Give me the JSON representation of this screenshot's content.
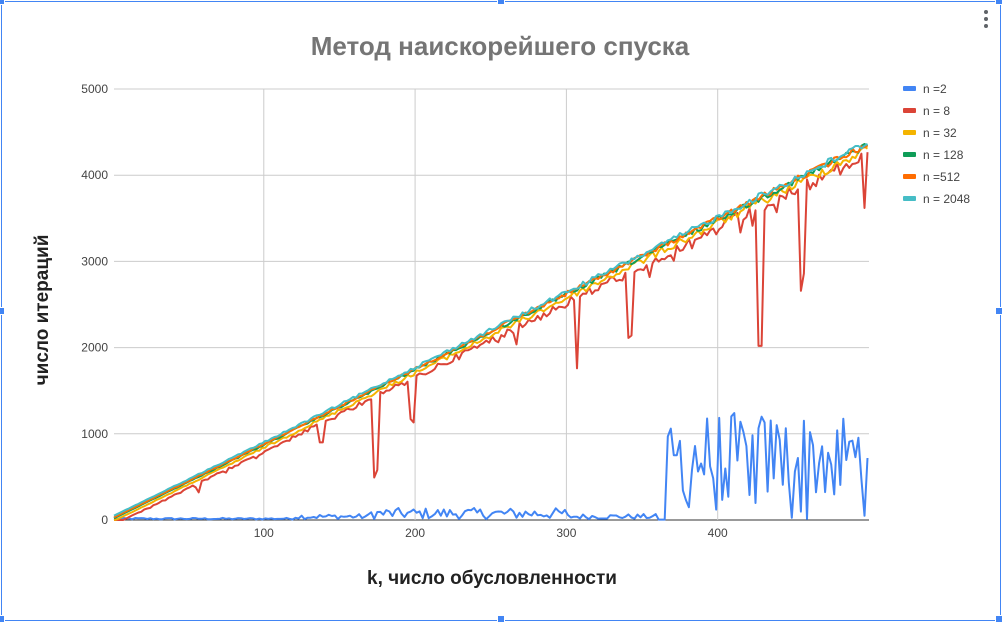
{
  "chart_data": {
    "type": "line",
    "title": "Метод наискорейшего спуска",
    "xlabel": "k, число обусловленности",
    "ylabel": "число итераций",
    "xlim": [
      1,
      500
    ],
    "ylim": [
      0,
      5000
    ],
    "x_ticks": [
      100,
      200,
      300,
      400
    ],
    "y_ticks": [
      0,
      1000,
      2000,
      3000,
      4000,
      5000
    ],
    "grid": true,
    "legend_position": "right",
    "series": [
      {
        "name": "n =2",
        "color": "#4285f4"
      },
      {
        "name": "n = 8",
        "color": "#db4437"
      },
      {
        "name": "n = 32",
        "color": "#f4b400"
      },
      {
        "name": "n = 128",
        "color": "#0f9d58"
      },
      {
        "name": "n =512",
        "color": "#ff6d01"
      },
      {
        "name": "n = 2048",
        "color": "#46bdc6"
      }
    ],
    "approximate_trend": {
      "x": [
        1,
        100,
        200,
        300,
        400,
        500
      ],
      "n_8_to_2048_y": [
        20,
        880,
        1760,
        2640,
        3520,
        4400
      ],
      "n_2_y_range": {
        "x_1_to_365": [
          0,
          150
        ],
        "x_365_to_500": [
          0,
          1250
        ]
      }
    },
    "n8_dips": [
      {
        "x": 57,
        "y": 320
      },
      {
        "x": 138,
        "y": 900
      },
      {
        "x": 174,
        "y": 580
      },
      {
        "x": 198,
        "y": 1170
      },
      {
        "x": 307,
        "y": 1760
      },
      {
        "x": 342,
        "y": 2140
      },
      {
        "x": 428,
        "y": 2020
      },
      {
        "x": 456,
        "y": 2860
      },
      {
        "x": 497,
        "y": 3620
      }
    ]
  }
}
